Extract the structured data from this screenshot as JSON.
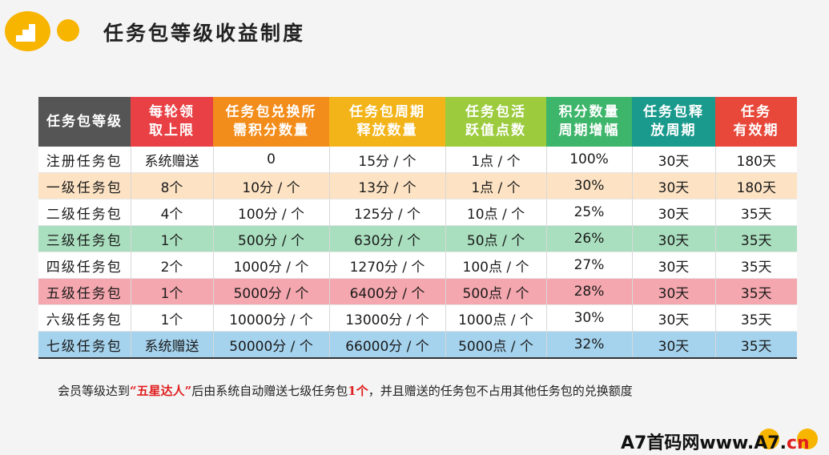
{
  "header": {
    "title": "任务包等级收益制度"
  },
  "colors": {
    "accent": "#f7b500",
    "header_colors": [
      "#555555",
      "#e84045",
      "#f28c1a",
      "#f3b41a",
      "#9ccb3e",
      "#3db56a",
      "#1a9a8c",
      "#e7483a"
    ]
  },
  "table": {
    "headers": [
      "任务包等级",
      "每轮领\n取上限",
      "任务包兑换所\n需积分数量",
      "任务包周期\n释放数量",
      "任务包活\n跃值点数",
      "积分数量\n周期增幅",
      "任务包释\n放周期",
      "任务\n有效期"
    ],
    "rows": [
      {
        "bg": "#ffffff",
        "cells": [
          "注册任务包",
          "系统赠送",
          "0",
          "15分 / 个",
          "1点 / 个",
          "100%",
          "30天",
          "180天"
        ]
      },
      {
        "bg": "#fde3c4",
        "cells": [
          "一级任务包",
          "8个",
          "10分 / 个",
          "13分 / 个",
          "1点 / 个",
          "30%",
          "30天",
          "180天"
        ]
      },
      {
        "bg": "#ffffff",
        "cells": [
          "二级任务包",
          "4个",
          "100分 / 个",
          "125分 / 个",
          "10点 / 个",
          "25%",
          "30天",
          "35天"
        ]
      },
      {
        "bg": "#a9dfbf",
        "cells": [
          "三级任务包",
          "1个",
          "500分 / 个",
          "630分 / 个",
          "50点 / 个",
          "26%",
          "30天",
          "35天"
        ]
      },
      {
        "bg": "#ffffff",
        "cells": [
          "四级任务包",
          "2个",
          "1000分 / 个",
          "1270分 / 个",
          "100点 / 个",
          "27%",
          "30天",
          "35天"
        ]
      },
      {
        "bg": "#f4a7ae",
        "cells": [
          "五级任务包",
          "1个",
          "5000分 / 个",
          "6400分 / 个",
          "500点 / 个",
          "28%",
          "30天",
          "35天"
        ]
      },
      {
        "bg": "#ffffff",
        "cells": [
          "六级任务包",
          "1个",
          "10000分 / 个",
          "13000分 / 个",
          "1000点 / 个",
          "30%",
          "30天",
          "35天"
        ]
      },
      {
        "bg": "#a5d3ee",
        "cells": [
          "七级任务包",
          "系统赠送",
          "50000分 / 个",
          "66000分 / 个",
          "5000点 / 个",
          "32%",
          "30天",
          "35天"
        ]
      }
    ]
  },
  "note": {
    "part1": "会员等级达到",
    "highlight1": "“五星达人”",
    "part2": "后由系统自动赠送七级任务包",
    "highlight2": "1个",
    "part3": "，并且赠送的任务包不占用其他任务包的兑换额度"
  },
  "watermark": {
    "text1": "A7首码网www.A7.",
    "text2": "cn"
  }
}
